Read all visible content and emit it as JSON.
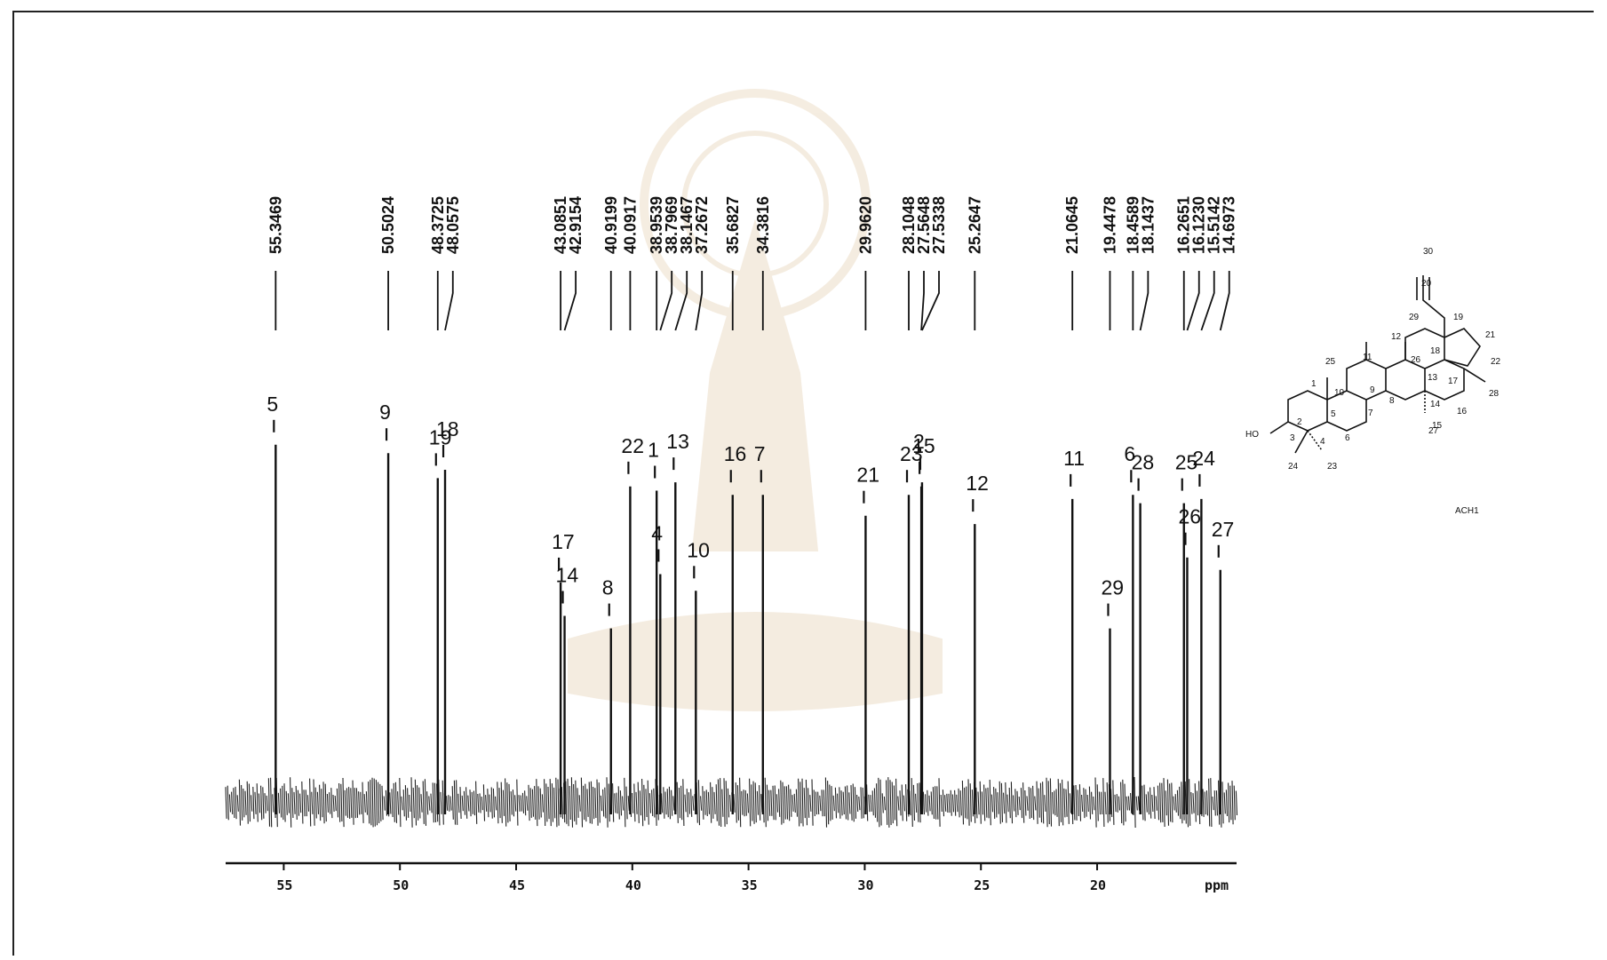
{
  "chart_data": {
    "type": "nmr-spectrum",
    "title": "",
    "xlabel": "ppm",
    "xlim": [
      57.5,
      14.0
    ],
    "x_ticks": [
      55,
      50,
      45,
      40,
      35,
      30,
      25,
      20
    ],
    "x_tick_labels": [
      "55",
      "50",
      "45",
      "40",
      "35",
      "30",
      "25",
      "20"
    ],
    "grid": false,
    "peaks": [
      {
        "shift": 55.3469,
        "label": "55.3469",
        "assignment": "5",
        "intensity": 0.86
      },
      {
        "shift": 50.5024,
        "label": "50.5024",
        "assignment": "9",
        "intensity": 0.84
      },
      {
        "shift": 48.3725,
        "label": "48.3725",
        "assignment": "19",
        "intensity": 0.78
      },
      {
        "shift": 48.0575,
        "label": "48.0575",
        "assignment": "18",
        "intensity": 0.8
      },
      {
        "shift": 43.0851,
        "label": "43.0851",
        "assignment": "17",
        "intensity": 0.53
      },
      {
        "shift": 42.9154,
        "label": "42.9154",
        "assignment": "14",
        "intensity": 0.45
      },
      {
        "shift": 40.9199,
        "label": "40.9199",
        "assignment": "8",
        "intensity": 0.42
      },
      {
        "shift": 40.0917,
        "label": "40.0917",
        "assignment": "22",
        "intensity": 0.76
      },
      {
        "shift": 38.9539,
        "label": "38.9539",
        "assignment": "1",
        "intensity": 0.75
      },
      {
        "shift": 38.7969,
        "label": "38.7969",
        "assignment": "4",
        "intensity": 0.55
      },
      {
        "shift": 38.1467,
        "label": "38.1467",
        "assignment": "13",
        "intensity": 0.77
      },
      {
        "shift": 37.2672,
        "label": "37.2672",
        "assignment": "10",
        "intensity": 0.51
      },
      {
        "shift": 35.6827,
        "label": "35.6827",
        "assignment": "16",
        "intensity": 0.74
      },
      {
        "shift": 34.3816,
        "label": "34.3816",
        "assignment": "7",
        "intensity": 0.74
      },
      {
        "shift": 29.962,
        "label": "29.9620",
        "assignment": "21",
        "intensity": 0.69
      },
      {
        "shift": 28.1048,
        "label": "28.1048",
        "assignment": "23",
        "intensity": 0.74
      },
      {
        "shift": 27.5648,
        "label": "27.5648",
        "assignment": "15",
        "intensity": 0.76
      },
      {
        "shift": 27.5338,
        "label": "27.5338",
        "assignment": "2",
        "intensity": 0.77
      },
      {
        "shift": 25.2647,
        "label": "25.2647",
        "assignment": "12",
        "intensity": 0.67
      },
      {
        "shift": 21.0645,
        "label": "21.0645",
        "assignment": "11",
        "intensity": 0.73
      },
      {
        "shift": 19.4478,
        "label": "19.4478",
        "assignment": "29",
        "intensity": 0.42
      },
      {
        "shift": 18.4589,
        "label": "18.4589",
        "assignment": "6",
        "intensity": 0.74
      },
      {
        "shift": 18.1437,
        "label": "18.1437",
        "assignment": "28",
        "intensity": 0.72
      },
      {
        "shift": 16.2651,
        "label": "16.2651",
        "assignment": "25",
        "intensity": 0.72
      },
      {
        "shift": 16.123,
        "label": "16.1230",
        "assignment": "26",
        "intensity": 0.59
      },
      {
        "shift": 15.5142,
        "label": "15.5142",
        "assignment": "24",
        "intensity": 0.73
      },
      {
        "shift": 14.6973,
        "label": "14.6973",
        "assignment": "27",
        "intensity": 0.56
      }
    ]
  },
  "structure": {
    "compound_label": "ACH1",
    "substituent": "HO",
    "carbon_numbers": [
      "1",
      "2",
      "3",
      "4",
      "5",
      "6",
      "7",
      "8",
      "9",
      "10",
      "11",
      "12",
      "13",
      "14",
      "15",
      "16",
      "17",
      "18",
      "19",
      "20",
      "21",
      "22",
      "23",
      "24",
      "25",
      "26",
      "27",
      "28",
      "29",
      "30"
    ]
  },
  "colors": {
    "ink": "#111111",
    "watermark": "#e6c8a0",
    "watermark_text": "#f2d6d6"
  }
}
